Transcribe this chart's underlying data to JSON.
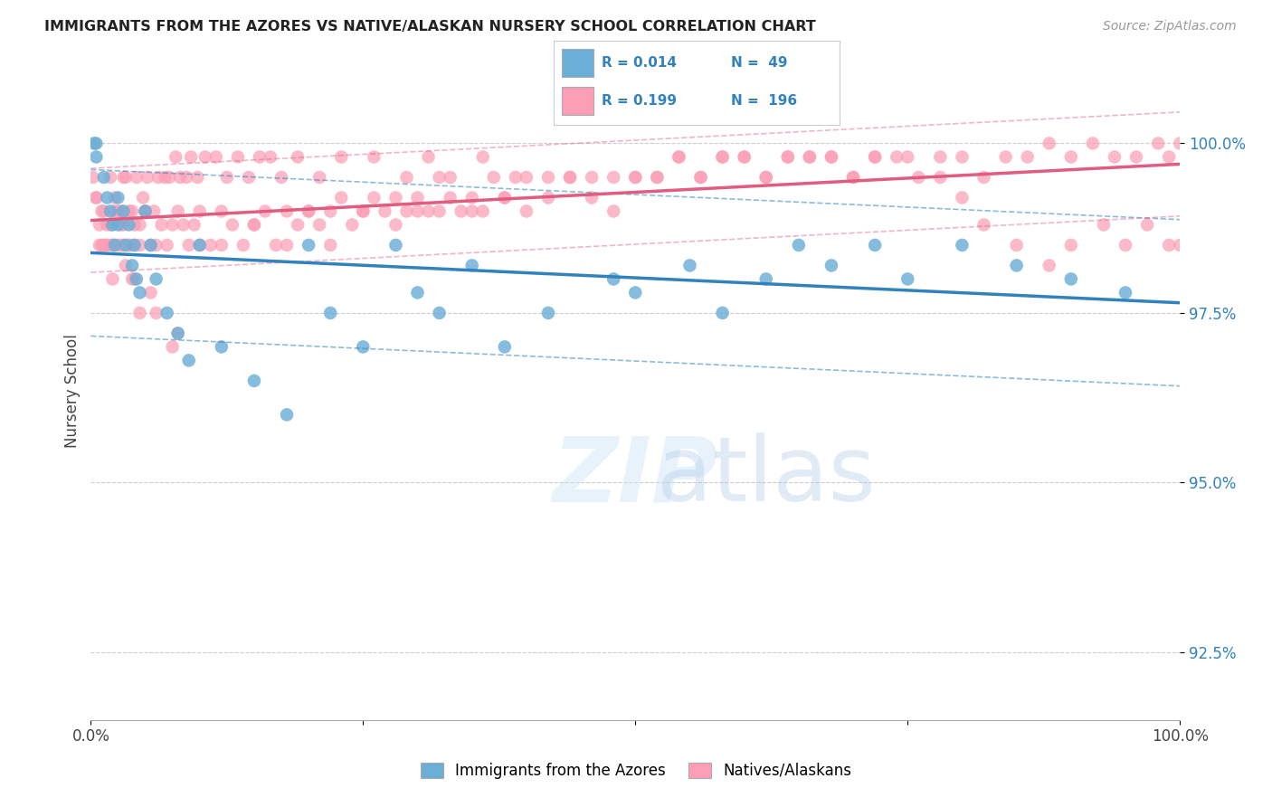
{
  "title": "IMMIGRANTS FROM THE AZORES VS NATIVE/ALASKAN NURSERY SCHOOL CORRELATION CHART",
  "source": "Source: ZipAtlas.com",
  "ylabel": "Nursery School",
  "ytick_labels": [
    "92.5%",
    "95.0%",
    "97.5%",
    "100.0%"
  ],
  "ytick_values": [
    92.5,
    95.0,
    97.5,
    100.0
  ],
  "legend_blue_R": "0.014",
  "legend_blue_N": "49",
  "legend_pink_R": "0.199",
  "legend_pink_N": "196",
  "legend_label_blue": "Immigrants from the Azores",
  "legend_label_pink": "Natives/Alaskans",
  "blue_color": "#6baed6",
  "pink_color": "#fc9eb5",
  "blue_line_color": "#3182bd",
  "pink_line_color": "#e05c80",
  "blue_scatter_x": [
    0.3,
    0.5,
    0.5,
    1.2,
    1.5,
    1.8,
    2.0,
    2.2,
    2.5,
    2.5,
    3.0,
    3.2,
    3.5,
    3.8,
    4.0,
    4.2,
    4.5,
    5.0,
    5.5,
    6.0,
    7.0,
    8.0,
    9.0,
    10.0,
    12.0,
    15.0,
    18.0,
    20.0,
    22.0,
    25.0,
    28.0,
    30.0,
    32.0,
    35.0,
    38.0,
    42.0,
    48.0,
    50.0,
    55.0,
    58.0,
    62.0,
    65.0,
    68.0,
    72.0,
    75.0,
    80.0,
    85.0,
    90.0,
    95.0
  ],
  "blue_scatter_y": [
    100.0,
    99.8,
    100.0,
    99.5,
    99.2,
    99.0,
    98.8,
    98.5,
    98.8,
    99.2,
    99.0,
    98.5,
    98.8,
    98.2,
    98.5,
    98.0,
    97.8,
    99.0,
    98.5,
    98.0,
    97.5,
    97.2,
    96.8,
    98.5,
    97.0,
    96.5,
    96.0,
    98.5,
    97.5,
    97.0,
    98.5,
    97.8,
    97.5,
    98.2,
    97.0,
    97.5,
    98.0,
    97.8,
    98.2,
    97.5,
    98.0,
    98.5,
    98.2,
    98.5,
    98.0,
    98.5,
    98.2,
    98.0,
    97.8
  ],
  "pink_scatter_x": [
    0.2,
    0.5,
    0.8,
    1.0,
    1.2,
    1.5,
    1.8,
    2.0,
    2.2,
    2.5,
    2.8,
    3.0,
    3.2,
    3.5,
    3.8,
    4.0,
    4.5,
    5.0,
    5.5,
    6.0,
    6.5,
    7.0,
    7.5,
    8.0,
    8.5,
    9.0,
    9.5,
    10.0,
    11.0,
    12.0,
    13.0,
    14.0,
    15.0,
    16.0,
    17.0,
    18.0,
    19.0,
    20.0,
    21.0,
    22.0,
    23.0,
    24.0,
    25.0,
    26.0,
    27.0,
    28.0,
    29.0,
    30.0,
    31.0,
    32.0,
    33.0,
    34.0,
    35.0,
    36.0,
    37.0,
    38.0,
    39.0,
    40.0,
    42.0,
    44.0,
    46.0,
    48.0,
    50.0,
    52.0,
    54.0,
    56.0,
    58.0,
    60.0,
    62.0,
    64.0,
    66.0,
    68.0,
    70.0,
    72.0,
    74.0,
    76.0,
    78.0,
    80.0,
    82.0,
    84.0,
    86.0,
    88.0,
    90.0,
    92.0,
    94.0,
    96.0,
    98.0,
    99.0,
    100.0,
    4.0,
    4.5,
    5.5,
    6.0,
    7.5,
    8.0,
    3.0,
    2.8,
    3.5,
    1.5,
    2.0,
    10.0,
    12.0,
    15.0,
    18.0,
    20.0,
    22.0,
    25.0,
    28.0,
    30.0,
    32.0,
    35.0,
    38.0,
    40.0,
    42.0,
    44.0,
    46.0,
    48.0,
    50.0,
    52.0,
    54.0,
    56.0,
    58.0,
    60.0,
    62.0,
    64.0,
    66.0,
    68.0,
    70.0,
    72.0,
    75.0,
    78.0,
    80.0,
    82.0,
    85.0,
    88.0,
    90.0,
    93.0,
    95.0,
    97.0,
    99.0,
    100.0,
    0.5,
    1.0,
    1.5,
    2.0,
    2.5,
    3.0,
    3.5,
    4.0,
    4.5,
    5.0,
    0.8,
    1.2,
    1.8,
    2.2,
    2.8,
    3.2,
    3.8,
    4.2,
    4.8,
    5.2,
    5.8,
    6.2,
    6.8,
    7.2,
    7.8,
    8.2,
    8.8,
    9.2,
    9.8,
    10.5,
    11.5,
    12.5,
    13.5,
    14.5,
    15.5,
    16.5,
    17.5,
    19.0,
    21.0,
    23.0,
    26.0,
    29.0,
    31.0,
    33.0,
    36.0
  ],
  "pink_scatter_y": [
    99.5,
    99.2,
    98.8,
    99.0,
    98.5,
    98.5,
    98.8,
    98.5,
    99.0,
    98.5,
    98.8,
    98.5,
    98.2,
    98.5,
    98.0,
    98.5,
    98.8,
    99.0,
    98.5,
    98.5,
    98.8,
    98.5,
    98.8,
    99.0,
    98.8,
    98.5,
    98.8,
    99.0,
    98.5,
    99.0,
    98.8,
    98.5,
    98.8,
    99.0,
    98.5,
    99.0,
    98.8,
    99.0,
    98.8,
    99.0,
    99.2,
    98.8,
    99.0,
    99.2,
    99.0,
    99.2,
    99.0,
    99.2,
    99.0,
    99.0,
    99.2,
    99.0,
    99.2,
    99.0,
    99.5,
    99.2,
    99.5,
    99.5,
    99.2,
    99.5,
    99.5,
    99.0,
    99.5,
    99.5,
    99.8,
    99.5,
    99.8,
    99.8,
    99.5,
    99.8,
    99.8,
    99.8,
    99.5,
    99.8,
    99.8,
    99.5,
    99.8,
    99.8,
    99.5,
    99.8,
    99.8,
    100.0,
    99.8,
    100.0,
    99.8,
    99.8,
    100.0,
    99.8,
    100.0,
    98.0,
    97.5,
    97.8,
    97.5,
    97.0,
    97.2,
    99.5,
    98.5,
    99.0,
    98.5,
    98.0,
    98.5,
    98.5,
    98.8,
    98.5,
    99.0,
    98.5,
    99.0,
    98.8,
    99.0,
    99.5,
    99.0,
    99.2,
    99.0,
    99.5,
    99.5,
    99.2,
    99.5,
    99.5,
    99.5,
    99.8,
    99.5,
    99.8,
    99.8,
    99.5,
    99.8,
    99.8,
    99.8,
    99.5,
    99.8,
    99.8,
    99.5,
    99.2,
    98.8,
    98.5,
    98.2,
    98.5,
    98.8,
    98.5,
    98.8,
    98.5,
    98.5,
    99.2,
    98.5,
    98.8,
    98.5,
    99.0,
    98.8,
    98.5,
    98.8,
    98.5,
    99.0,
    98.5,
    99.0,
    99.5,
    99.2,
    99.0,
    99.5,
    99.0,
    99.5,
    99.2,
    99.5,
    99.0,
    99.5,
    99.5,
    99.5,
    99.8,
    99.5,
    99.5,
    99.8,
    99.5,
    99.8,
    99.8,
    99.5,
    99.8,
    99.5,
    99.8,
    99.8,
    99.5,
    99.8,
    99.5,
    99.8,
    99.8,
    99.5,
    99.8,
    99.5,
    99.8
  ],
  "xlim": [
    0,
    100
  ],
  "ylim": [
    91.5,
    101.2
  ]
}
